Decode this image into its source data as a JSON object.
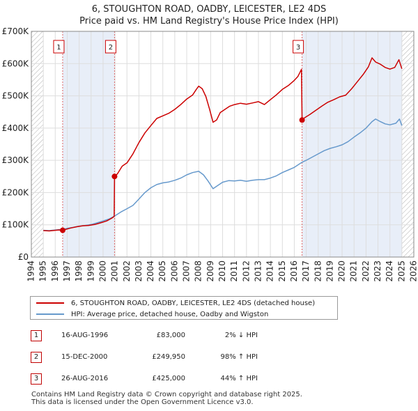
{
  "chart_data": {
    "type": "line",
    "title": "6, STOUGHTON ROAD, OADBY, LEICESTER, LE2 4DS",
    "subtitle": "Price paid vs. HM Land Registry's House Price Index (HPI)",
    "xlabel": "",
    "ylabel": "",
    "xlim": [
      1994,
      2026
    ],
    "ylim": [
      0,
      700000
    ],
    "x_ticks": [
      "1994",
      "1995",
      "1996",
      "1997",
      "1998",
      "1999",
      "2000",
      "2001",
      "2002",
      "2003",
      "2004",
      "2005",
      "2006",
      "2007",
      "2008",
      "2009",
      "2010",
      "2011",
      "2012",
      "2013",
      "2014",
      "2015",
      "2016",
      "2017",
      "2018",
      "2019",
      "2020",
      "2021",
      "2022",
      "2023",
      "2024",
      "2025",
      "2026"
    ],
    "y_ticks": [
      {
        "value": 0,
        "label": "£0"
      },
      {
        "value": 100000,
        "label": "£100K"
      },
      {
        "value": 200000,
        "label": "£200K"
      },
      {
        "value": 300000,
        "label": "£300K"
      },
      {
        "value": 400000,
        "label": "£400K"
      },
      {
        "value": 500000,
        "label": "£500K"
      },
      {
        "value": 600000,
        "label": "£600K"
      },
      {
        "value": 700000,
        "label": "£700K"
      }
    ],
    "grid": true,
    "shaded_periods": [
      [
        1996.62,
        2000.96
      ],
      [
        2016.65,
        2025.0
      ]
    ],
    "hatched_ranges": [
      [
        1994.0,
        1995.0
      ],
      [
        2025.0,
        2026.0
      ]
    ],
    "series": [
      {
        "name": "6, STOUGHTON ROAD, OADBY, LEICESTER, LE2 4DS (detached house)",
        "color": "#cc0000",
        "points": [
          [
            1995.0,
            82000
          ],
          [
            1995.5,
            81000
          ],
          [
            1996.0,
            83000
          ],
          [
            1996.3,
            84000
          ],
          [
            1996.62,
            83000
          ],
          [
            1996.9,
            86000
          ],
          [
            1997.3,
            90000
          ],
          [
            1997.8,
            94000
          ],
          [
            1998.3,
            97000
          ],
          [
            1998.8,
            98000
          ],
          [
            1999.3,
            101000
          ],
          [
            1999.8,
            106000
          ],
          [
            2000.3,
            112000
          ],
          [
            2000.7,
            120000
          ],
          [
            2000.93,
            126000
          ],
          [
            2000.96,
            249950
          ],
          [
            2001.2,
            258000
          ],
          [
            2001.6,
            282000
          ],
          [
            2002.0,
            292000
          ],
          [
            2002.5,
            320000
          ],
          [
            2003.0,
            355000
          ],
          [
            2003.5,
            385000
          ],
          [
            2004.0,
            408000
          ],
          [
            2004.5,
            430000
          ],
          [
            2005.0,
            438000
          ],
          [
            2005.5,
            446000
          ],
          [
            2006.0,
            458000
          ],
          [
            2006.5,
            473000
          ],
          [
            2007.0,
            490000
          ],
          [
            2007.5,
            503000
          ],
          [
            2007.8,
            520000
          ],
          [
            2008.0,
            530000
          ],
          [
            2008.3,
            522000
          ],
          [
            2008.6,
            498000
          ],
          [
            2008.9,
            460000
          ],
          [
            2009.2,
            418000
          ],
          [
            2009.5,
            425000
          ],
          [
            2009.8,
            448000
          ],
          [
            2010.2,
            458000
          ],
          [
            2010.6,
            468000
          ],
          [
            2011.0,
            473000
          ],
          [
            2011.5,
            477000
          ],
          [
            2012.0,
            474000
          ],
          [
            2012.5,
            478000
          ],
          [
            2013.0,
            482000
          ],
          [
            2013.5,
            473000
          ],
          [
            2014.0,
            488000
          ],
          [
            2014.5,
            503000
          ],
          [
            2015.0,
            520000
          ],
          [
            2015.5,
            532000
          ],
          [
            2016.0,
            548000
          ],
          [
            2016.3,
            560000
          ],
          [
            2016.6,
            582000
          ],
          [
            2016.65,
            425000
          ],
          [
            2016.9,
            433000
          ],
          [
            2017.3,
            442000
          ],
          [
            2017.8,
            455000
          ],
          [
            2018.3,
            468000
          ],
          [
            2018.8,
            480000
          ],
          [
            2019.3,
            488000
          ],
          [
            2019.8,
            497000
          ],
          [
            2020.3,
            502000
          ],
          [
            2020.8,
            522000
          ],
          [
            2021.3,
            545000
          ],
          [
            2021.8,
            568000
          ],
          [
            2022.2,
            590000
          ],
          [
            2022.5,
            618000
          ],
          [
            2022.8,
            605000
          ],
          [
            2023.2,
            598000
          ],
          [
            2023.6,
            588000
          ],
          [
            2024.0,
            583000
          ],
          [
            2024.4,
            588000
          ],
          [
            2024.75,
            612000
          ],
          [
            2025.0,
            584000
          ]
        ]
      },
      {
        "name": "HPI: Average price, detached house, Oadby and Wigston",
        "color": "#6699cc",
        "points": [
          [
            1995.0,
            83000
          ],
          [
            1995.5,
            82000
          ],
          [
            1996.0,
            84000
          ],
          [
            1996.62,
            86000
          ],
          [
            1997.0,
            89000
          ],
          [
            1997.5,
            92000
          ],
          [
            1998.0,
            96000
          ],
          [
            1998.5,
            98000
          ],
          [
            1999.0,
            101000
          ],
          [
            1999.5,
            106000
          ],
          [
            2000.0,
            112000
          ],
          [
            2000.5,
            118000
          ],
          [
            2001.0,
            128000
          ],
          [
            2001.5,
            140000
          ],
          [
            2002.0,
            150000
          ],
          [
            2002.5,
            160000
          ],
          [
            2003.0,
            180000
          ],
          [
            2003.5,
            200000
          ],
          [
            2004.0,
            215000
          ],
          [
            2004.5,
            225000
          ],
          [
            2005.0,
            230000
          ],
          [
            2005.5,
            233000
          ],
          [
            2006.0,
            238000
          ],
          [
            2006.5,
            245000
          ],
          [
            2007.0,
            255000
          ],
          [
            2007.5,
            262000
          ],
          [
            2008.0,
            266000
          ],
          [
            2008.4,
            255000
          ],
          [
            2008.8,
            235000
          ],
          [
            2009.2,
            212000
          ],
          [
            2009.6,
            222000
          ],
          [
            2010.0,
            232000
          ],
          [
            2010.5,
            237000
          ],
          [
            2011.0,
            236000
          ],
          [
            2011.5,
            238000
          ],
          [
            2012.0,
            235000
          ],
          [
            2012.5,
            238000
          ],
          [
            2013.0,
            240000
          ],
          [
            2013.5,
            240000
          ],
          [
            2014.0,
            245000
          ],
          [
            2014.5,
            252000
          ],
          [
            2015.0,
            262000
          ],
          [
            2015.5,
            270000
          ],
          [
            2016.0,
            278000
          ],
          [
            2016.65,
            294000
          ],
          [
            2017.0,
            300000
          ],
          [
            2017.5,
            310000
          ],
          [
            2018.0,
            320000
          ],
          [
            2018.5,
            330000
          ],
          [
            2019.0,
            337000
          ],
          [
            2019.5,
            342000
          ],
          [
            2020.0,
            348000
          ],
          [
            2020.5,
            358000
          ],
          [
            2021.0,
            372000
          ],
          [
            2021.5,
            385000
          ],
          [
            2022.0,
            400000
          ],
          [
            2022.5,
            420000
          ],
          [
            2022.8,
            428000
          ],
          [
            2023.2,
            420000
          ],
          [
            2023.6,
            413000
          ],
          [
            2024.0,
            410000
          ],
          [
            2024.5,
            415000
          ],
          [
            2024.8,
            428000
          ],
          [
            2025.0,
            408000
          ]
        ]
      }
    ],
    "sales": [
      {
        "num": "1",
        "x": 1996.62,
        "value": 83000
      },
      {
        "num": "2",
        "x": 2000.96,
        "value": 249950
      },
      {
        "num": "3",
        "x": 2016.65,
        "value": 425000
      }
    ]
  },
  "legend": {
    "property_label": "6, STOUGHTON ROAD, OADBY, LEICESTER, LE2 4DS (detached house)",
    "hpi_label": "HPI: Average price, detached house, Oadby and Wigston",
    "property_color": "#cc0000",
    "hpi_color": "#6699cc"
  },
  "sales_table": [
    {
      "num": "1",
      "date": "16-AUG-1996",
      "price": "£83,000",
      "hpi": "2% ↓ HPI"
    },
    {
      "num": "2",
      "date": "15-DEC-2000",
      "price": "£249,950",
      "hpi": "98% ↑ HPI"
    },
    {
      "num": "3",
      "date": "26-AUG-2016",
      "price": "£425,000",
      "hpi": "44% ↑ HPI"
    }
  ],
  "footer": {
    "line1": "Contains HM Land Registry data © Crown copyright and database right 2025.",
    "line2": "This data is licensed under the Open Government Licence v3.0."
  }
}
